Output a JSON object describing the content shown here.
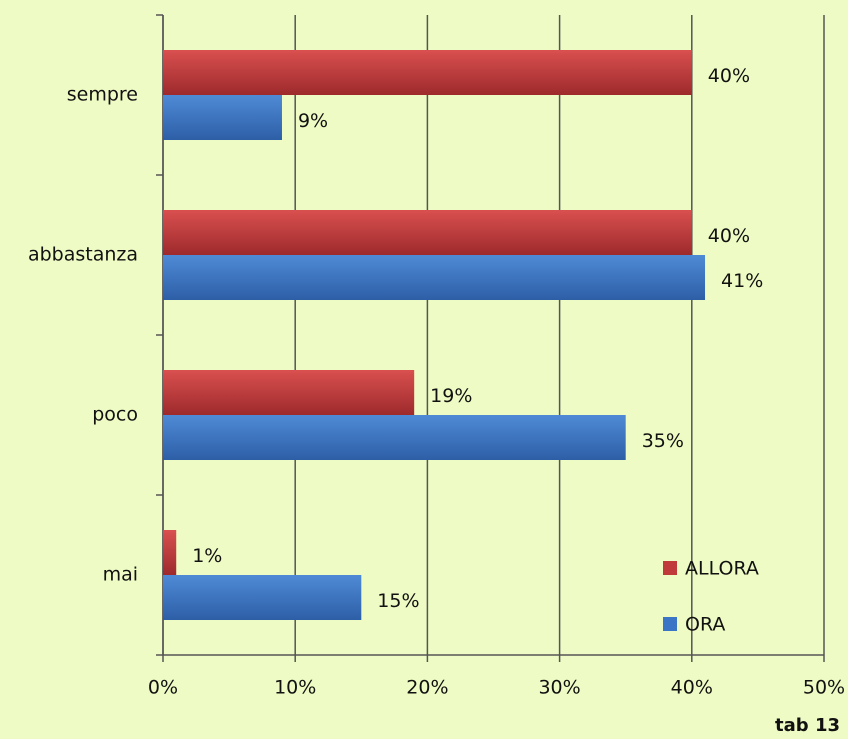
{
  "chart_data": {
    "type": "hbar",
    "categories": [
      "sempre",
      "abbastanza",
      "poco",
      "mai"
    ],
    "series": [
      {
        "name": "ALLORA",
        "color": "#c0393b",
        "values": [
          40,
          40,
          19,
          1
        ],
        "value_labels": [
          "40%",
          "40%",
          "19%",
          "1%"
        ]
      },
      {
        "name": "ORA",
        "color": "#3b76c6",
        "values": [
          9,
          41,
          35,
          15
        ],
        "value_labels": [
          "9%",
          "41%",
          "35%",
          "15%"
        ]
      }
    ],
    "xlim": [
      0,
      50
    ],
    "xticks": [
      {
        "value": 0,
        "label": "0%"
      },
      {
        "value": 10,
        "label": "10%"
      },
      {
        "value": 20,
        "label": "20%"
      },
      {
        "value": 30,
        "label": "30%"
      },
      {
        "value": 40,
        "label": "40%"
      },
      {
        "value": 50,
        "label": "50%"
      }
    ],
    "grid": true,
    "legend": "lower right",
    "annotation": "tab 13"
  }
}
